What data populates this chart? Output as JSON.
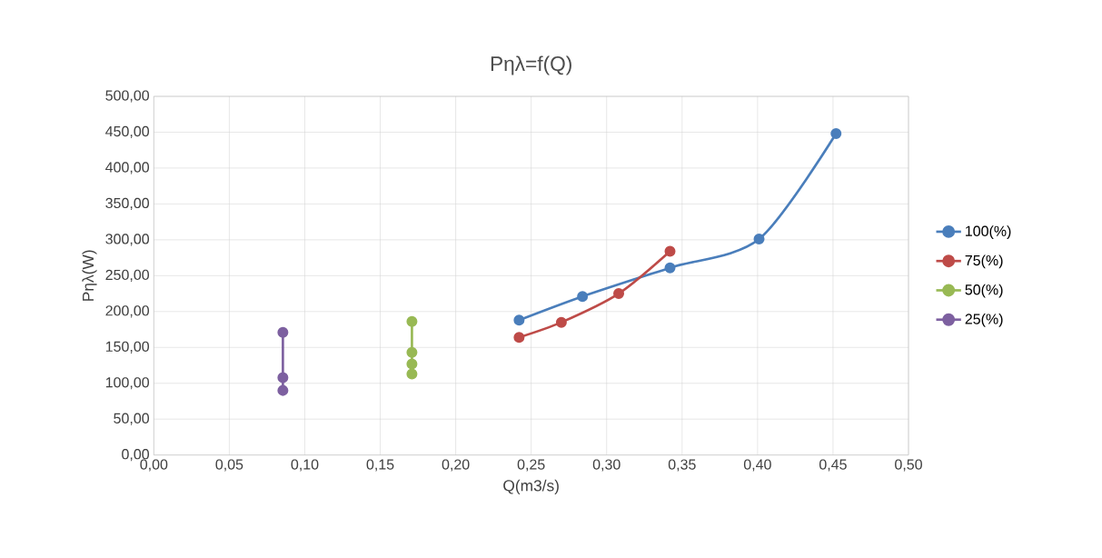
{
  "chart_data": {
    "type": "line",
    "title": "Pηλ=f(Q)",
    "xlabel": "Q(m3/s)",
    "ylabel": "Pηλ(W)",
    "xlim": [
      0,
      0.5
    ],
    "ylim": [
      0,
      500
    ],
    "xticks": [
      {
        "value": 0,
        "label": "0,00"
      },
      {
        "value": 0.05,
        "label": "0,05"
      },
      {
        "value": 0.1,
        "label": "0,10"
      },
      {
        "value": 0.15,
        "label": "0,15"
      },
      {
        "value": 0.2,
        "label": "0,20"
      },
      {
        "value": 0.25,
        "label": "0,25"
      },
      {
        "value": 0.3,
        "label": "0,30"
      },
      {
        "value": 0.35,
        "label": "0,35"
      },
      {
        "value": 0.4,
        "label": "0,40"
      },
      {
        "value": 0.45,
        "label": "0,45"
      },
      {
        "value": 0.5,
        "label": "0,50"
      }
    ],
    "yticks": [
      {
        "value": 0,
        "label": "0,00"
      },
      {
        "value": 50,
        "label": "50,00"
      },
      {
        "value": 100,
        "label": "100,00"
      },
      {
        "value": 150,
        "label": "150,00"
      },
      {
        "value": 200,
        "label": "200,00"
      },
      {
        "value": 250,
        "label": "250,00"
      },
      {
        "value": 300,
        "label": "300,00"
      },
      {
        "value": 350,
        "label": "350,00"
      },
      {
        "value": 400,
        "label": "400,00"
      },
      {
        "value": 450,
        "label": "450,00"
      },
      {
        "value": 500,
        "label": "500,00"
      }
    ],
    "grid": true,
    "legend": "right",
    "marker": "circle",
    "series": [
      {
        "name": "100(%)",
        "color": "#4a7ebb",
        "x": [
          0.242,
          0.284,
          0.342,
          0.401,
          0.452
        ],
        "values": [
          188,
          221,
          261,
          301,
          448
        ]
      },
      {
        "name": "75(%)",
        "color": "#be4b48",
        "x": [
          0.242,
          0.27,
          0.308,
          0.342
        ],
        "values": [
          164,
          185,
          225,
          284
        ]
      },
      {
        "name": "50(%)",
        "color": "#98b954",
        "x": [
          0.171,
          0.171,
          0.171,
          0.171
        ],
        "values": [
          186,
          143,
          127,
          113
        ]
      },
      {
        "name": "25(%)",
        "color": "#7d60a0",
        "x": [
          0.0855,
          0.0855,
          0.0855
        ],
        "values": [
          171,
          108,
          90
        ]
      }
    ]
  }
}
